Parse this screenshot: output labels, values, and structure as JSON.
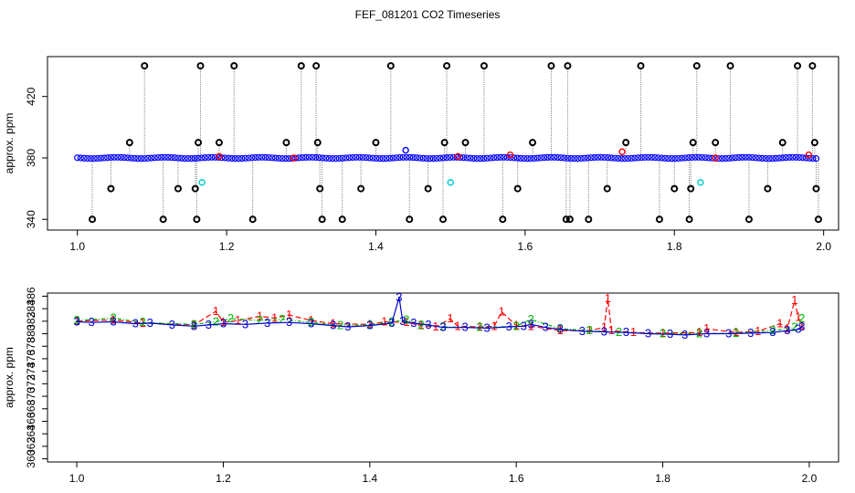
{
  "title": "FEF_081201  CO2 Timeseries",
  "chart_data": [
    {
      "type": "scatter",
      "title": "",
      "xlabel": "",
      "ylabel": "approx. ppm",
      "xlim": [
        0.96,
        2.02
      ],
      "ylim": [
        333,
        446
      ],
      "x_ticks": [
        1.0,
        1.2,
        1.4,
        1.6,
        1.8,
        2.0
      ],
      "y_ticks": [
        340,
        380,
        420
      ],
      "series": [
        {
          "color": "#0000ff",
          "baseline": 380,
          "x_start": 1.0,
          "x_end": 1.99,
          "step": 0.0045
        },
        {
          "color": "#000000",
          "points": [
            [
              1.02,
              340
            ],
            [
              1.045,
              360
            ],
            [
              1.07,
              390
            ],
            [
              1.09,
              440
            ],
            [
              1.115,
              340
            ],
            [
              1.135,
              360
            ],
            [
              1.16,
              340
            ],
            [
              1.158,
              360
            ],
            [
              1.162,
              390
            ],
            [
              1.165,
              440
            ],
            [
              1.19,
              390
            ],
            [
              1.21,
              440
            ],
            [
              1.235,
              340
            ],
            [
              1.28,
              390
            ],
            [
              1.3,
              440
            ],
            [
              1.32,
              440
            ],
            [
              1.322,
              390
            ],
            [
              1.325,
              360
            ],
            [
              1.328,
              340
            ],
            [
              1.355,
              340
            ],
            [
              1.38,
              360
            ],
            [
              1.4,
              390
            ],
            [
              1.42,
              440
            ],
            [
              1.445,
              340
            ],
            [
              1.47,
              360
            ],
            [
              1.49,
              340
            ],
            [
              1.492,
              390
            ],
            [
              1.495,
              440
            ],
            [
              1.52,
              390
            ],
            [
              1.545,
              440
            ],
            [
              1.57,
              340
            ],
            [
              1.59,
              360
            ],
            [
              1.61,
              390
            ],
            [
              1.635,
              440
            ],
            [
              1.655,
              340
            ],
            [
              1.657,
              440
            ],
            [
              1.66,
              340
            ],
            [
              1.685,
              340
            ],
            [
              1.71,
              360
            ],
            [
              1.735,
              390
            ],
            [
              1.755,
              440
            ],
            [
              1.78,
              340
            ],
            [
              1.8,
              360
            ],
            [
              1.82,
              340
            ],
            [
              1.822,
              360
            ],
            [
              1.825,
              390
            ],
            [
              1.83,
              440
            ],
            [
              1.855,
              390
            ],
            [
              1.875,
              440
            ],
            [
              1.9,
              340
            ],
            [
              1.925,
              360
            ],
            [
              1.945,
              390
            ],
            [
              1.965,
              440
            ],
            [
              1.985,
              440
            ],
            [
              1.988,
              390
            ],
            [
              1.99,
              360
            ],
            [
              1.993,
              340
            ]
          ]
        },
        {
          "color": "#ff0000",
          "points": [
            [
              1.19,
              381
            ],
            [
              1.29,
              380
            ],
            [
              1.51,
              381
            ],
            [
              1.58,
              382
            ],
            [
              1.73,
              384
            ],
            [
              1.855,
              380
            ],
            [
              1.98,
              382
            ]
          ]
        },
        {
          "color": "#00cccc",
          "points": [
            [
              1.167,
              364
            ],
            [
              1.5,
              364
            ],
            [
              1.835,
              364
            ]
          ]
        },
        {
          "color": "#0000ff",
          "points": [
            [
              1.44,
              385
            ]
          ]
        }
      ]
    },
    {
      "type": "line",
      "title": "",
      "xlabel": "",
      "ylabel": "approx. ppm",
      "xlim": [
        0.96,
        2.04
      ],
      "ylim": [
        359.5,
        386.5
      ],
      "x_ticks": [
        1.0,
        1.2,
        1.4,
        1.6,
        1.8,
        2.0
      ],
      "y_ticks": [
        360,
        362,
        364,
        366,
        368,
        370,
        372,
        374,
        376,
        378,
        380,
        382,
        384,
        386
      ],
      "y_ticks_labeled": [
        360,
        362,
        364,
        366,
        368,
        370,
        372,
        374,
        376,
        378,
        380,
        382,
        384,
        386
      ],
      "series": [
        {
          "name": "1",
          "color": "#ff0000",
          "x": [
            1.0,
            1.05,
            1.09,
            1.16,
            1.19,
            1.2,
            1.22,
            1.25,
            1.27,
            1.29,
            1.32,
            1.35,
            1.4,
            1.42,
            1.45,
            1.47,
            1.49,
            1.51,
            1.52,
            1.55,
            1.57,
            1.58,
            1.6,
            1.62,
            1.66,
            1.7,
            1.72,
            1.725,
            1.73,
            1.76,
            1.8,
            1.85,
            1.86,
            1.9,
            1.93,
            1.96,
            1.97,
            1.98,
            1.985,
            1.99
          ],
          "y": [
            382.0,
            382.2,
            381.7,
            381.4,
            383.6,
            381.8,
            382.1,
            382.8,
            382.5,
            383.0,
            382.1,
            381.6,
            381.5,
            381.9,
            381.8,
            381.3,
            381.1,
            382.4,
            381.2,
            381.1,
            381.2,
            383.5,
            381.3,
            381.2,
            380.5,
            380.5,
            381.0,
            385.6,
            380.5,
            380.2,
            380.1,
            380.2,
            380.8,
            380.2,
            380.4,
            381.6,
            380.8,
            385.3,
            382.6,
            381.3
          ]
        },
        {
          "name": "2",
          "color": "#00bb00",
          "x": [
            1.0,
            1.05,
            1.09,
            1.16,
            1.19,
            1.21,
            1.25,
            1.28,
            1.32,
            1.36,
            1.4,
            1.43,
            1.45,
            1.47,
            1.5,
            1.55,
            1.6,
            1.62,
            1.66,
            1.7,
            1.74,
            1.8,
            1.85,
            1.9,
            1.95,
            1.98,
            1.99
          ],
          "y": [
            382.1,
            382.5,
            381.8,
            381.5,
            381.9,
            382.4,
            382.1,
            382.3,
            381.8,
            381.3,
            381.4,
            381.9,
            382.2,
            381.4,
            381.1,
            381.0,
            381.2,
            382.3,
            380.8,
            380.5,
            380.2,
            380.0,
            380.0,
            380.1,
            380.5,
            381.0,
            382.4
          ]
        },
        {
          "name": "3",
          "color": "#0000cc",
          "x": [
            1.0,
            1.02,
            1.05,
            1.08,
            1.1,
            1.13,
            1.16,
            1.18,
            1.2,
            1.23,
            1.26,
            1.29,
            1.32,
            1.35,
            1.37,
            1.4,
            1.43,
            1.44,
            1.445,
            1.46,
            1.48,
            1.5,
            1.53,
            1.56,
            1.59,
            1.61,
            1.62,
            1.64,
            1.66,
            1.69,
            1.72,
            1.75,
            1.78,
            1.81,
            1.83,
            1.86,
            1.89,
            1.92,
            1.95,
            1.97,
            1.985,
            1.99
          ],
          "y": [
            381.9,
            381.8,
            381.9,
            381.6,
            381.7,
            381.4,
            381.2,
            381.4,
            381.6,
            381.5,
            381.7,
            381.8,
            381.6,
            381.3,
            381.1,
            381.3,
            381.7,
            385.8,
            382.0,
            381.7,
            381.4,
            381.0,
            381.0,
            380.9,
            381.1,
            381.2,
            381.5,
            381.0,
            380.7,
            380.4,
            380.3,
            380.2,
            380.0,
            379.9,
            379.8,
            380.0,
            380.0,
            380.1,
            380.2,
            380.5,
            380.7,
            381.1
          ]
        }
      ]
    }
  ]
}
